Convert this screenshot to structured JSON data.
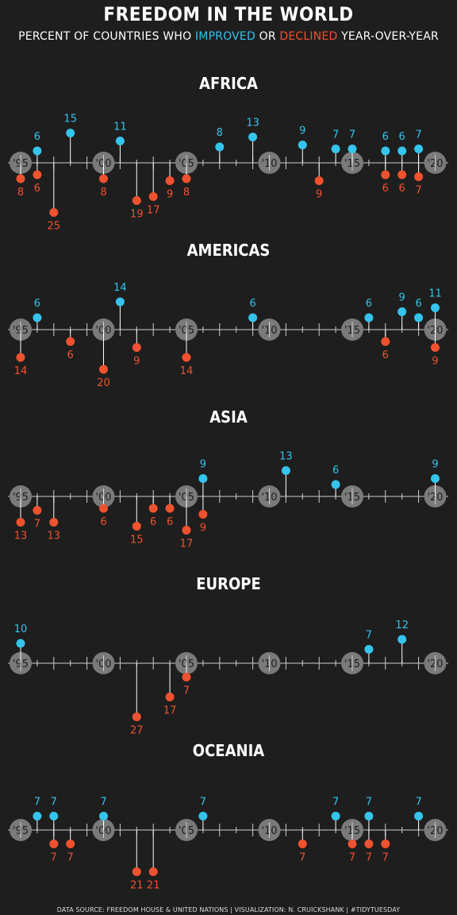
{
  "header": {
    "title": "FREEDOM IN THE WORLD",
    "subtitle_prefix": "PERCENT OF COUNTRIES WHO",
    "subtitle_improved": "IMPROVED",
    "subtitle_or": "OR",
    "subtitle_declined": "DECLINED",
    "subtitle_suffix": "YEAR-OVER-YEAR"
  },
  "footer": {
    "text": "DATA SOURCE: FREEDOM HOUSE & UNITED NATIONS |   VISUALIZATION: N. CRUICKSHANK |   #TIDYTUESDAY"
  },
  "colors": {
    "background": "#1e1e1e",
    "improved": "#35c4ec",
    "declined": "#f0522f",
    "axis": "#cfcfcf",
    "year_circle": "#7a7a7a"
  },
  "chart_data": {
    "type": "lollipop",
    "x_range": [
      1995,
      2020
    ],
    "year_labels": [
      {
        "year": 1995,
        "label": "'95"
      },
      {
        "year": 2000,
        "label": "'00"
      },
      {
        "year": 2005,
        "label": "'05"
      },
      {
        "year": 2010,
        "label": "'10"
      },
      {
        "year": 2015,
        "label": "'15"
      },
      {
        "year": 2020,
        "label": "'20"
      }
    ],
    "regions": [
      {
        "name": "AFRICA",
        "improved": [
          {
            "year": 1996,
            "value": 6
          },
          {
            "year": 1998,
            "value": 15
          },
          {
            "year": 2001,
            "value": 11
          },
          {
            "year": 2007,
            "value": 8
          },
          {
            "year": 2009,
            "value": 13
          },
          {
            "year": 2012,
            "value": 9
          },
          {
            "year": 2014,
            "value": 7
          },
          {
            "year": 2015,
            "value": 7
          },
          {
            "year": 2017,
            "value": 6
          },
          {
            "year": 2018,
            "value": 6
          },
          {
            "year": 2019,
            "value": 7
          }
        ],
        "declined": [
          {
            "year": 1995,
            "value": 8
          },
          {
            "year": 1996,
            "value": 6
          },
          {
            "year": 1997,
            "value": 25
          },
          {
            "year": 2000,
            "value": 8
          },
          {
            "year": 2002,
            "value": 19
          },
          {
            "year": 2003,
            "value": 17
          },
          {
            "year": 2004,
            "value": 9
          },
          {
            "year": 2005,
            "value": 8
          },
          {
            "year": 2013,
            "value": 9
          },
          {
            "year": 2017,
            "value": 6
          },
          {
            "year": 2018,
            "value": 6
          },
          {
            "year": 2019,
            "value": 7
          }
        ]
      },
      {
        "name": "AMERICAS",
        "improved": [
          {
            "year": 1996,
            "value": 6
          },
          {
            "year": 2001,
            "value": 14
          },
          {
            "year": 2009,
            "value": 6
          },
          {
            "year": 2016,
            "value": 6
          },
          {
            "year": 2018,
            "value": 9
          },
          {
            "year": 2019,
            "value": 6
          },
          {
            "year": 2020,
            "value": 11
          }
        ],
        "declined": [
          {
            "year": 1995,
            "value": 14
          },
          {
            "year": 1998,
            "value": 6
          },
          {
            "year": 2000,
            "value": 20
          },
          {
            "year": 2002,
            "value": 9
          },
          {
            "year": 2005,
            "value": 14
          },
          {
            "year": 2017,
            "value": 6
          },
          {
            "year": 2020,
            "value": 9
          }
        ]
      },
      {
        "name": "ASIA",
        "improved": [
          {
            "year": 2006,
            "value": 9
          },
          {
            "year": 2011,
            "value": 13
          },
          {
            "year": 2014,
            "value": 6
          },
          {
            "year": 2020,
            "value": 9
          }
        ],
        "declined": [
          {
            "year": 1995,
            "value": 13
          },
          {
            "year": 1996,
            "value": 7
          },
          {
            "year": 1997,
            "value": 13
          },
          {
            "year": 2000,
            "value": 6
          },
          {
            "year": 2002,
            "value": 15
          },
          {
            "year": 2003,
            "value": 6
          },
          {
            "year": 2004,
            "value": 6
          },
          {
            "year": 2005,
            "value": 17
          },
          {
            "year": 2006,
            "value": 9
          }
        ]
      },
      {
        "name": "EUROPE",
        "improved": [
          {
            "year": 1995,
            "value": 10
          },
          {
            "year": 2016,
            "value": 7
          },
          {
            "year": 2018,
            "value": 12
          }
        ],
        "declined": [
          {
            "year": 2002,
            "value": 27
          },
          {
            "year": 2004,
            "value": 17
          },
          {
            "year": 2005,
            "value": 7
          }
        ]
      },
      {
        "name": "OCEANIA",
        "improved": [
          {
            "year": 1996,
            "value": 7
          },
          {
            "year": 1997,
            "value": 7
          },
          {
            "year": 2000,
            "value": 7
          },
          {
            "year": 2006,
            "value": 7
          },
          {
            "year": 2014,
            "value": 7
          },
          {
            "year": 2016,
            "value": 7
          },
          {
            "year": 2019,
            "value": 7
          }
        ],
        "declined": [
          {
            "year": 1997,
            "value": 7
          },
          {
            "year": 1998,
            "value": 7
          },
          {
            "year": 2002,
            "value": 21
          },
          {
            "year": 2003,
            "value": 21
          },
          {
            "year": 2012,
            "value": 7
          },
          {
            "year": 2015,
            "value": 7
          },
          {
            "year": 2016,
            "value": 7
          },
          {
            "year": 2017,
            "value": 7
          }
        ]
      }
    ]
  }
}
